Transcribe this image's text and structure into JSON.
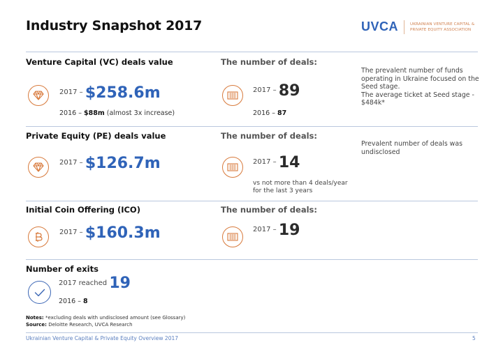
{
  "title": "Industry Snapshot 2017",
  "logo": {
    "mark": "UVCA",
    "text_line1": "UKRAINIAN VENTURE CAPITAL &",
    "text_line2": "PRIVATE EQUITY ASSOCIATION"
  },
  "vc": {
    "title": "Venture Capital (VC) deals value",
    "year_label": "2017 –",
    "value": "$258.6m",
    "prev_year_label": "2016 –",
    "prev_value": "$88m",
    "prev_note": "(almost 3x increase)",
    "icon": "diamond-icon",
    "deals_title": "The number of deals:",
    "deals_year_label": "2017 –",
    "deals_value": "89",
    "deals_prev": "2016 –",
    "deals_prev_value": "87",
    "deals_icon": "flag-icon",
    "note_lines": [
      "The prevalent number of funds",
      "operating in Ukraine focused on the",
      "Seed stage.",
      "The average ticket at Seed stage -",
      "$484k*"
    ]
  },
  "pe": {
    "title": "Private Equity (PE) deals value",
    "year_label": "2017 –",
    "value": "$126.7m",
    "icon": "diamond-icon",
    "deals_title": "The number of deals:",
    "deals_year_label": "2017 –",
    "deals_value": "14",
    "deals_icon": "flag-icon",
    "deals_note_line1": "vs not more than 4 deals/year",
    "deals_note_line2": "for the last 3 years",
    "note_line1": "Prevalent number of deals was",
    "note_line2": "undisclosed"
  },
  "ico": {
    "title": "Initial Coin Offering (ICO)",
    "year_label": "2017 –",
    "value": "$160.3m",
    "icon": "bitcoin-icon",
    "deals_title": "The number of deals:",
    "deals_year_label": "2017 –",
    "deals_value": "19",
    "deals_icon": "flag-icon"
  },
  "exits": {
    "title": "Number of exits",
    "year_label": "2017 reached",
    "value": "19",
    "prev_label": "2016 –",
    "prev_value": "8",
    "icon": "check-icon"
  },
  "notes": {
    "notes_label": "Notes:",
    "notes_text": "*excluding deals with undisclosed amount (see Glossary)",
    "source_label": "Source:",
    "source_text": "Deloitte Research, UVCA Research"
  },
  "footer": {
    "text": "Ukrainian Venture Capital & Private Equity Overview 2017",
    "page": "5"
  },
  "colors": {
    "accent_blue": "#2f63b8",
    "accent_orange": "#d87a3c"
  }
}
